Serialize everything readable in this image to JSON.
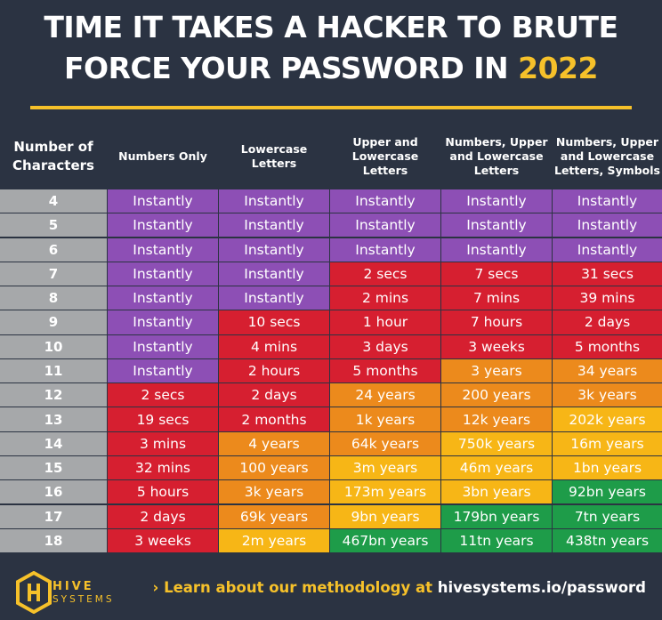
{
  "title": {
    "line1": "TIME IT TAKES A HACKER TO BRUTE",
    "line2": "FORCE YOUR PASSWORD IN",
    "year": "2022"
  },
  "footer": {
    "brand_line1": "HIVE",
    "brand_line2": "SYSTEMS",
    "arrow": "›",
    "link_lead": "Learn about our methodology at",
    "link_url": "hivesystems.io/password"
  },
  "colors": {
    "purple": "#8d4fb5",
    "red": "#d61f30",
    "orange": "#ec8a1c",
    "yellow": "#f7b616",
    "green": "#1e9c49",
    "gray": "#a6a8aa",
    "accent": "#f6c12a",
    "background": "#2b3342"
  },
  "chart_data": {
    "type": "table",
    "columns": [
      "Number of Characters",
      "Numbers Only",
      "Lowercase Letters",
      "Upper and Lowercase Letters",
      "Numbers, Upper and Lowercase Letters",
      "Numbers, Upper and Lowercase Letters, Symbols"
    ],
    "rows": [
      {
        "chars": "4",
        "cells": [
          [
            "Instantly",
            "purple"
          ],
          [
            "Instantly",
            "purple"
          ],
          [
            "Instantly",
            "purple"
          ],
          [
            "Instantly",
            "purple"
          ],
          [
            "Instantly",
            "purple"
          ]
        ]
      },
      {
        "chars": "5",
        "cells": [
          [
            "Instantly",
            "purple"
          ],
          [
            "Instantly",
            "purple"
          ],
          [
            "Instantly",
            "purple"
          ],
          [
            "Instantly",
            "purple"
          ],
          [
            "Instantly",
            "purple"
          ]
        ]
      },
      {
        "chars": "6",
        "cells": [
          [
            "Instantly",
            "purple"
          ],
          [
            "Instantly",
            "purple"
          ],
          [
            "Instantly",
            "purple"
          ],
          [
            "Instantly",
            "purple"
          ],
          [
            "Instantly",
            "purple"
          ]
        ]
      },
      {
        "chars": "7",
        "cells": [
          [
            "Instantly",
            "purple"
          ],
          [
            "Instantly",
            "purple"
          ],
          [
            "2 secs",
            "red"
          ],
          [
            "7 secs",
            "red"
          ],
          [
            "31 secs",
            "red"
          ]
        ]
      },
      {
        "chars": "8",
        "cells": [
          [
            "Instantly",
            "purple"
          ],
          [
            "Instantly",
            "purple"
          ],
          [
            "2 mins",
            "red"
          ],
          [
            "7 mins",
            "red"
          ],
          [
            "39 mins",
            "red"
          ]
        ]
      },
      {
        "chars": "9",
        "cells": [
          [
            "Instantly",
            "purple"
          ],
          [
            "10 secs",
            "red"
          ],
          [
            "1 hour",
            "red"
          ],
          [
            "7 hours",
            "red"
          ],
          [
            "2 days",
            "red"
          ]
        ]
      },
      {
        "chars": "10",
        "cells": [
          [
            "Instantly",
            "purple"
          ],
          [
            "4 mins",
            "red"
          ],
          [
            "3 days",
            "red"
          ],
          [
            "3 weeks",
            "red"
          ],
          [
            "5 months",
            "red"
          ]
        ]
      },
      {
        "chars": "11",
        "cells": [
          [
            "Instantly",
            "purple"
          ],
          [
            "2 hours",
            "red"
          ],
          [
            "5 months",
            "red"
          ],
          [
            "3 years",
            "orange"
          ],
          [
            "34 years",
            "orange"
          ]
        ]
      },
      {
        "chars": "12",
        "cells": [
          [
            "2 secs",
            "red"
          ],
          [
            "2 days",
            "red"
          ],
          [
            "24 years",
            "orange"
          ],
          [
            "200 years",
            "orange"
          ],
          [
            "3k years",
            "orange"
          ]
        ]
      },
      {
        "chars": "13",
        "cells": [
          [
            "19 secs",
            "red"
          ],
          [
            "2 months",
            "red"
          ],
          [
            "1k years",
            "orange"
          ],
          [
            "12k years",
            "orange"
          ],
          [
            "202k years",
            "yellow"
          ]
        ]
      },
      {
        "chars": "14",
        "cells": [
          [
            "3 mins",
            "red"
          ],
          [
            "4 years",
            "orange"
          ],
          [
            "64k years",
            "orange"
          ],
          [
            "750k years",
            "yellow"
          ],
          [
            "16m years",
            "yellow"
          ]
        ]
      },
      {
        "chars": "15",
        "cells": [
          [
            "32 mins",
            "red"
          ],
          [
            "100 years",
            "orange"
          ],
          [
            "3m years",
            "yellow"
          ],
          [
            "46m years",
            "yellow"
          ],
          [
            "1bn years",
            "yellow"
          ]
        ]
      },
      {
        "chars": "16",
        "cells": [
          [
            "5 hours",
            "red"
          ],
          [
            "3k years",
            "orange"
          ],
          [
            "173m years",
            "yellow"
          ],
          [
            "3bn years",
            "yellow"
          ],
          [
            "92bn years",
            "green"
          ]
        ]
      },
      {
        "chars": "17",
        "cells": [
          [
            "2 days",
            "red"
          ],
          [
            "69k years",
            "orange"
          ],
          [
            "9bn years",
            "yellow"
          ],
          [
            "179bn years",
            "green"
          ],
          [
            "7tn years",
            "green"
          ]
        ]
      },
      {
        "chars": "18",
        "cells": [
          [
            "3 weeks",
            "red"
          ],
          [
            "2m years",
            "yellow"
          ],
          [
            "467bn years",
            "green"
          ],
          [
            "11tn years",
            "green"
          ],
          [
            "438tn years",
            "green"
          ]
        ]
      }
    ]
  }
}
